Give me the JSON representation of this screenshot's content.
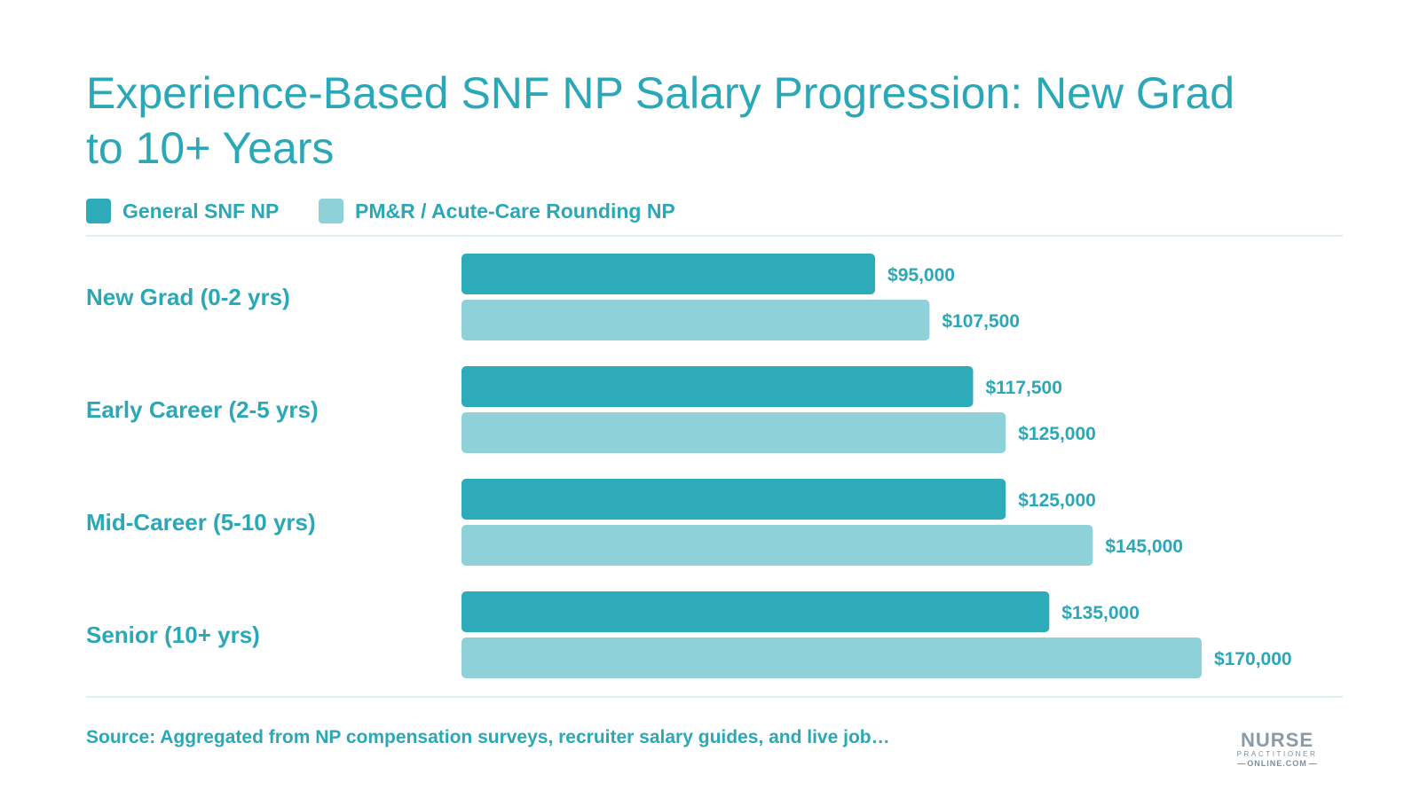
{
  "chart_data": {
    "type": "bar",
    "orientation": "horizontal",
    "title": "Experience-Based SNF NP Salary Progression: New Grad to 10+ Years",
    "categories": [
      "New Grad (0-2 yrs)",
      "Early Career (2-5 yrs)",
      "Mid-Career (5-10 yrs)",
      "Senior (10+ yrs)"
    ],
    "series": [
      {
        "name": "General SNF NP",
        "color": "#2eabb9",
        "values": [
          95000,
          117500,
          125000,
          135000
        ],
        "labels": [
          "$95,000",
          "$117,500",
          "$125,000",
          "$135,000"
        ]
      },
      {
        "name": "PM&R / Acute-Care Rounding NP",
        "color": "#8fd1d9",
        "values": [
          107500,
          125000,
          145000,
          170000
        ],
        "labels": [
          "$107,500",
          "$125,000",
          "$145,000",
          "$170,000"
        ]
      }
    ],
    "xlim": [
      0,
      170000
    ],
    "grid": false,
    "legend_position": "top-left"
  },
  "source": "Source: Aggregated from NP compensation surveys, recruiter salary guides, and live job…",
  "logo": {
    "line1": "NURSE",
    "line2": "PRACTITIONER",
    "line3": "ONLINE.COM"
  },
  "colors": {
    "accent": "#2ba8b7"
  }
}
